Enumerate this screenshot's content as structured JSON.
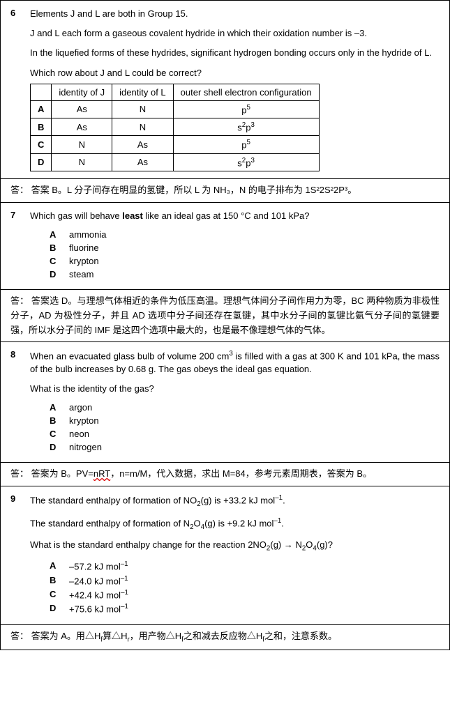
{
  "q6": {
    "num": "6",
    "p1": "Elements J and L are both in Group 15.",
    "p2": "J and L each form a gaseous covalent hydride in which their oxidation number is –3.",
    "p3": "In the liquefied forms of these hydrides, significant hydrogen bonding occurs only in the hydride of L.",
    "p4": "Which row about J and L could be correct?",
    "table": {
      "h1": "identity of J",
      "h2": "identity of L",
      "h3": "outer shell electron configuration",
      "rows": [
        {
          "l": "A",
          "j": "As",
          "L": "N",
          "cfg_html": "p<sup>5</sup>"
        },
        {
          "l": "B",
          "j": "As",
          "L": "N",
          "cfg_html": "s<sup>2</sup>p<sup>3</sup>"
        },
        {
          "l": "C",
          "j": "N",
          "L": "As",
          "cfg_html": "p<sup>5</sup>"
        },
        {
          "l": "D",
          "j": "N",
          "L": "As",
          "cfg_html": "s<sup>2</sup>p<sup>3</sup>"
        }
      ]
    },
    "ans_label": "答：",
    "ans_text": "答案 B。L 分子间存在明显的氢键，所以 L 为 NH₃，N 的电子排布为 1S²2S²2P³。"
  },
  "q7": {
    "num": "7",
    "q_pre": "Which gas will behave ",
    "q_bold": "least",
    "q_post": " like an ideal gas at 150 °C and 101 kPa?",
    "opts": {
      "A": "ammonia",
      "B": "fluorine",
      "C": "krypton",
      "D": "steam"
    },
    "ans_label": "答：",
    "ans_text": "答案选 D。与理想气体相近的条件为低压高温。理想气体间分子间作用力为零，BC 两种物质为非极性分子，AD 为极性分子，并且 AD 选项中分子间还存在氢键，其中水分子间的氢键比氨气分子间的氢键要强，所以水分子间的 IMF 是这四个选项中最大的，也是最不像理想气体的气体。"
  },
  "q8": {
    "num": "8",
    "p1_pre": "When an evacuated glass bulb of volume 200 cm",
    "p1_sup": "3",
    "p1_post": " is filled with a gas at 300 K and 101 kPa, the mass of the bulb increases by 0.68 g. The gas obeys the ideal gas equation.",
    "p2": "What is the identity of the gas?",
    "opts": {
      "A": "argon",
      "B": "krypton",
      "C": "neon",
      "D": "nitrogen"
    },
    "ans_label": "答：",
    "ans_pre": "答案为 B。PV=",
    "ans_u": "nRT",
    "ans_post": "，n=m/M，代入数据，求出 M=84，参考元素周期表，答案为 B。"
  },
  "q9": {
    "num": "9",
    "p1_pre": "The standard enthalpy of formation of NO",
    "p1_sub1": "2",
    "p1_mid": "(g) is +33.2 kJ mol",
    "p1_sup": "–1",
    "p1_post": ".",
    "p2_pre": "The standard enthalpy of formation of N",
    "p2_sub1": "2",
    "p2_mid1": "O",
    "p2_sub2": "4",
    "p2_mid2": "(g) is +9.2 kJ mol",
    "p2_sup": "–1",
    "p2_post": ".",
    "p3_pre": "What is the standard enthalpy change for the reaction  2NO",
    "p3_sub1": "2",
    "p3_mid1": "(g)  ",
    "p3_arrow": "→",
    "p3_mid2": "  N",
    "p3_sub2": "2",
    "p3_mid3": "O",
    "p3_sub3": "4",
    "p3_post": "(g)?",
    "opts": {
      "A": {
        "v": "–57.2 kJ mol",
        "sup": "–1"
      },
      "B": {
        "v": "–24.0 kJ mol",
        "sup": "–1"
      },
      "C": {
        "v": "+42.4 kJ mol",
        "sup": "–1"
      },
      "D": {
        "v": "+75.6 kJ mol",
        "sup": "–1"
      }
    },
    "ans_label": "答：",
    "ans_parts": {
      "t1": "答案为 A。用",
      "d1": "△",
      "h1": "H",
      "sub1": "f",
      "t2": "算",
      "d2": "△",
      "h2": "H",
      "sub2": "r",
      "t3": "，用产物",
      "d3": "△",
      "h3": "H",
      "sub3": "f",
      "t4": "之和减去反应物",
      "d4": "△",
      "h4": "H",
      "sub4": "f",
      "t5": "之和，注意系数。"
    }
  }
}
